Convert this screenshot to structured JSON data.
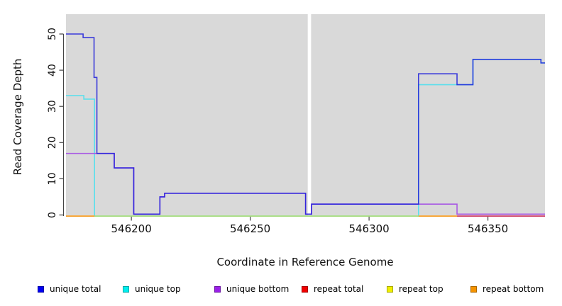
{
  "chart_data": {
    "type": "line",
    "step": "after",
    "title": "",
    "xlabel": "Coordinate in Reference Genome",
    "ylabel": "Read Coverage Depth",
    "xlim": [
      546172.5,
      546374
    ],
    "ylim": [
      0,
      55.5
    ],
    "xticks": [
      546200,
      546250,
      546300,
      546350
    ],
    "yticks": [
      0,
      10,
      20,
      30,
      40,
      50
    ],
    "grid": false,
    "plot_background": "#d9d9d9",
    "gap_band": {
      "from": 546274.2,
      "to": 546275.6,
      "color": "#ffffff"
    },
    "series": [
      {
        "name": "unique top",
        "color": "#5cdfec",
        "opacity": 1,
        "segments": [
          [
            [
              546172.5,
              33
            ],
            [
              546180,
              32
            ],
            [
              546184.5,
              0
            ],
            [
              546320.8,
              36
            ],
            [
              546343.7,
              43
            ],
            [
              546372.3,
              42
            ],
            [
              546374,
              42
            ]
          ]
        ]
      },
      {
        "name": "unique bottom",
        "color": "#a95be3",
        "opacity": 1,
        "segments": [
          [
            [
              546172.5,
              17
            ],
            [
              546192.8,
              13
            ],
            [
              546201,
              0
            ],
            [
              546212,
              5
            ],
            [
              546214,
              6
            ],
            [
              546273.3,
              0
            ],
            [
              546275.8,
              3
            ],
            [
              546337,
              0
            ],
            [
              546374,
              0
            ]
          ]
        ]
      },
      {
        "name": "unique total",
        "color": "#1d1dda",
        "opacity": 0.84,
        "segments": [
          [
            [
              546172.5,
              50
            ],
            [
              546179.7,
              49
            ],
            [
              546184.3,
              38
            ],
            [
              546185.5,
              17
            ],
            [
              546192.8,
              13
            ],
            [
              546201,
              0
            ],
            [
              546212,
              5
            ],
            [
              546214,
              6
            ],
            [
              546273.3,
              0
            ],
            [
              546275.8,
              3
            ],
            [
              546320.8,
              39
            ],
            [
              546337,
              36
            ],
            [
              546343.7,
              43
            ],
            [
              546372.3,
              42
            ],
            [
              546374,
              42
            ]
          ]
        ]
      },
      {
        "name": "repeat total",
        "color": "#d63a62",
        "opacity": 1,
        "segments": [
          [
            [
              546337,
              0
            ],
            [
              546374,
              0
            ]
          ]
        ]
      },
      {
        "name": "repeat top",
        "color": "#e0e02a",
        "opacity": 0.6,
        "segments": [
          [
            [
              546184.5,
              0
            ],
            [
              546320.8,
              0
            ]
          ]
        ]
      },
      {
        "name": "repeat bottom",
        "color": "#ff9e1b",
        "opacity": 1,
        "segments": [
          [
            [
              546172.5,
              0
            ],
            [
              546184.5,
              0
            ]
          ],
          [
            [
              546320.8,
              0
            ],
            [
              546337,
              0
            ]
          ]
        ]
      }
    ],
    "legend": {
      "position": "bottom",
      "items": [
        {
          "label": "unique total",
          "color": "#0000f0"
        },
        {
          "label": "unique top",
          "color": "#00eeee"
        },
        {
          "label": "unique bottom",
          "color": "#9a1fe8"
        },
        {
          "label": "repeat total",
          "color": "#f00000"
        },
        {
          "label": "repeat top",
          "color": "#f0f000"
        },
        {
          "label": "repeat bottom",
          "color": "#f59300"
        }
      ]
    }
  }
}
